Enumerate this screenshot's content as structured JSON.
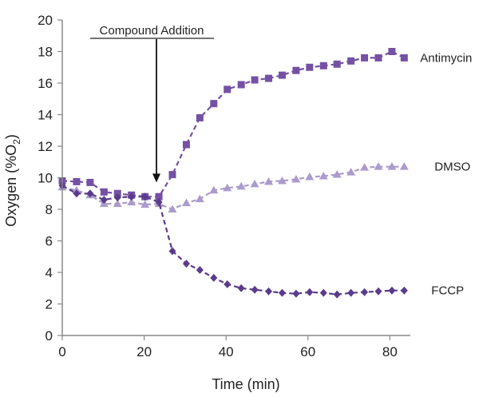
{
  "chart_data": {
    "type": "line",
    "title": "",
    "xlabel": "Time (min)",
    "ylabel_main": "Oxygen (%O",
    "ylabel_sub": "2",
    "ylabel_close": ")",
    "xlim": [
      0,
      85
    ],
    "ylim": [
      0,
      20
    ],
    "xticks": [
      0,
      20,
      40,
      60,
      80
    ],
    "yticks": [
      0,
      2,
      4,
      6,
      8,
      10,
      12,
      14,
      16,
      18,
      20
    ],
    "grid": false,
    "annotation": {
      "text": "Compound Addition",
      "arrow_x": 23,
      "arrow_y": 9.7
    },
    "series": [
      {
        "name": "Antimycin",
        "marker": "square",
        "color": "#7451a5",
        "x": [
          0,
          3.5,
          6.8,
          10.2,
          13.5,
          16.9,
          20.2,
          23.6,
          26.9,
          30.3,
          33.6,
          37,
          40.3,
          43.7,
          47,
          50.4,
          53.7,
          57.1,
          60.4,
          63.8,
          67.1,
          70.5,
          73.8,
          77.2,
          80.5,
          83.5
        ],
        "y": [
          9.8,
          9.75,
          9.7,
          9.1,
          9.0,
          8.9,
          8.8,
          8.8,
          10.2,
          12.1,
          13.8,
          14.7,
          15.6,
          15.9,
          16.2,
          16.3,
          16.5,
          16.8,
          17.0,
          17.1,
          17.2,
          17.4,
          17.6,
          17.6,
          18.0,
          17.6
        ]
      },
      {
        "name": "DMSO",
        "marker": "triangle",
        "color": "#ab9bcc",
        "x": [
          0,
          3.5,
          6.8,
          10.2,
          13.5,
          16.9,
          20.2,
          23.6,
          26.9,
          30.3,
          33.6,
          37,
          40.3,
          43.7,
          47,
          50.4,
          53.7,
          57.1,
          60.4,
          63.8,
          67.1,
          70.5,
          73.8,
          77.2,
          80.5,
          83.5
        ],
        "y": [
          9.4,
          9.2,
          8.9,
          8.35,
          8.35,
          8.45,
          8.3,
          8.35,
          8.0,
          8.4,
          8.65,
          9.2,
          9.35,
          9.45,
          9.6,
          9.75,
          9.8,
          9.9,
          10.05,
          10.1,
          10.2,
          10.35,
          10.65,
          10.7,
          10.7,
          10.7
        ]
      },
      {
        "name": "FCCP",
        "marker": "diamond",
        "color": "#5a3b8c",
        "x": [
          0,
          3.5,
          6.8,
          10.2,
          13.5,
          16.9,
          20.2,
          23.6,
          26.9,
          30.3,
          33.6,
          37,
          40.3,
          43.7,
          47,
          50.4,
          53.7,
          57.1,
          60.4,
          63.8,
          67.1,
          70.5,
          73.8,
          77.2,
          80.5,
          83.5
        ],
        "y": [
          9.5,
          9.0,
          9.0,
          8.6,
          8.75,
          8.8,
          8.8,
          8.45,
          5.35,
          4.55,
          4.15,
          3.65,
          3.25,
          3.0,
          2.9,
          2.8,
          2.7,
          2.65,
          2.75,
          2.7,
          2.6,
          2.7,
          2.75,
          2.8,
          2.85,
          2.85
        ]
      }
    ]
  }
}
